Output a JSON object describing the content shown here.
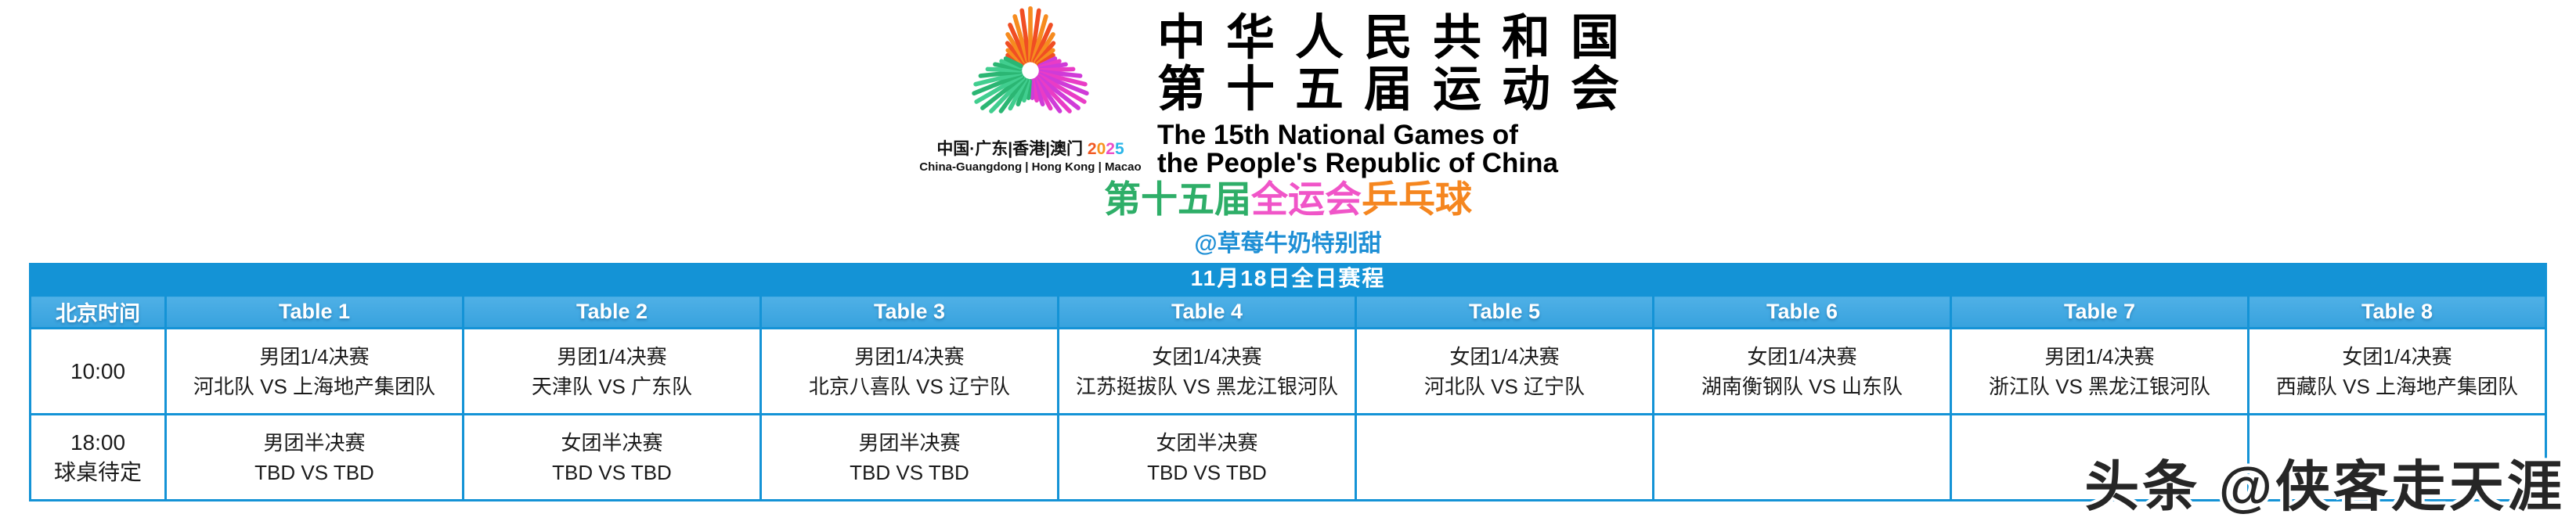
{
  "header": {
    "emblem_colors": {
      "top": [
        "#f04e23",
        "#f68b1f"
      ],
      "right": [
        "#e93cc6",
        "#cf3bd8"
      ],
      "left": [
        "#2bb673",
        "#41ce8f"
      ]
    },
    "host_line_cn": "中国·广东|香港|澳门",
    "year": [
      "2",
      "0",
      "2",
      "5"
    ],
    "year_colors": [
      "#f15a24",
      "#f7941e",
      "#ec4fc8",
      "#2bb5e8"
    ],
    "host_line_en": "China-Guangdong | Hong Kong | Macao",
    "title_cn_1": "中华人民共和国",
    "title_cn_2": "第十五届运动会",
    "title_en_1": "The 15th National Games of",
    "title_en_2": "the People's Republic of China",
    "event_title": {
      "part1": "第十五届",
      "part2": "全运会",
      "part3": "乒乓球"
    },
    "author_handle": "@草莓牛奶特别甜"
  },
  "schedule": {
    "band_title": "11月18日全日赛程",
    "time_header": "北京时间",
    "table_headers": [
      "Table 1",
      "Table 2",
      "Table 3",
      "Table 4",
      "Table 5",
      "Table 6",
      "Table 7",
      "Table 8"
    ],
    "rows": [
      {
        "time": "10:00",
        "time_note": "",
        "cells": [
          {
            "event": "男团1/4决赛",
            "match": "河北队 VS 上海地产集团队",
            "tint": "lavender"
          },
          {
            "event": "男团1/4决赛",
            "match": "天津队 VS 广东队",
            "tint": "lavender"
          },
          {
            "event": "男团1/4决赛",
            "match": "北京八喜队 VS 辽宁队",
            "tint": "lavender"
          },
          {
            "event": "女团1/4决赛",
            "match": "江苏挺拔队 VS 黑龙江银河队",
            "tint": "peach"
          },
          {
            "event": "女团1/4决赛",
            "match": "河北队 VS 辽宁队",
            "tint": "peach"
          },
          {
            "event": "女团1/4决赛",
            "match": "湖南衡钢队 VS 山东队",
            "tint": "peach"
          },
          {
            "event": "男团1/4决赛",
            "match": "浙江队 VS 黑龙江银河队",
            "tint": "lavender"
          },
          {
            "event": "女团1/4决赛",
            "match": "西藏队 VS 上海地产集团队",
            "tint": "peach"
          }
        ]
      },
      {
        "time": "18:00",
        "time_note": "球桌待定",
        "cells": [
          {
            "event": "男团半决赛",
            "match": "TBD VS TBD",
            "tint": "lavender"
          },
          {
            "event": "女团半决赛",
            "match": "TBD VS TBD",
            "tint": "peach"
          },
          {
            "event": "男团半决赛",
            "match": "TBD VS TBD",
            "tint": "lavender"
          },
          {
            "event": "女团半决赛",
            "match": "TBD VS TBD",
            "tint": "peach"
          },
          {
            "event": "",
            "match": "",
            "tint": "none"
          },
          {
            "event": "",
            "match": "",
            "tint": "none"
          },
          {
            "event": "",
            "match": "",
            "tint": "none"
          },
          {
            "event": "",
            "match": "",
            "tint": "none"
          }
        ]
      }
    ]
  },
  "watermark": "头条 @侠客走天涯",
  "colors": {
    "accent_blue": "#1493d6",
    "header_cell_blue": "#3da6e0",
    "lavender_cell": "#e8e4f7",
    "peach_cell": "#fcebd5",
    "event_green": "#2eae68",
    "event_magenta": "#f055c8",
    "event_orange": "#f5861f",
    "author_blue": "#1e8fd5"
  }
}
